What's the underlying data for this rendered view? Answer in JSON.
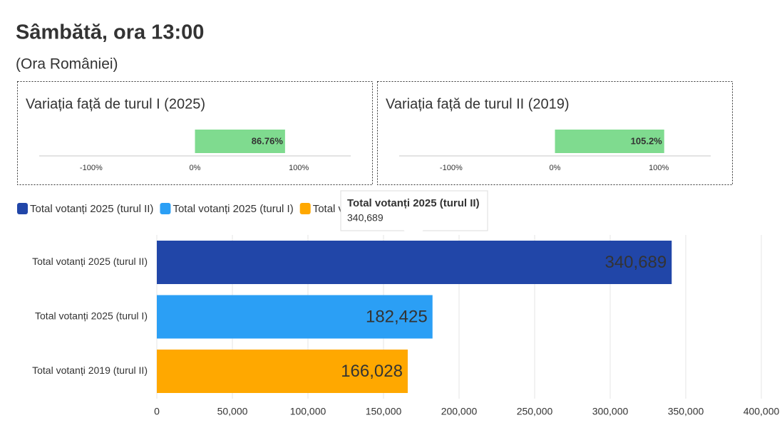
{
  "title": "Sâmbătă, ora 13:00",
  "subtitle": "(Ora României)",
  "chart_data": [
    {
      "type": "bar",
      "title": "Variația față de turul I (2025)",
      "values": [
        86.76
      ],
      "value_labels": [
        "86.76%"
      ],
      "color": "#7fdb8f",
      "xlim": [
        -150,
        150
      ],
      "xticks": [
        {
          "value": -100,
          "label": "-100%"
        },
        {
          "value": 0,
          "label": "0%"
        },
        {
          "value": 100,
          "label": "100%"
        }
      ]
    },
    {
      "type": "bar",
      "title": "Variația față de turul II (2019)",
      "values": [
        105.2
      ],
      "value_labels": [
        "105.2%"
      ],
      "color": "#7fdb8f",
      "xlim": [
        -150,
        150
      ],
      "xticks": [
        {
          "value": -100,
          "label": "-100%"
        },
        {
          "value": 0,
          "label": "0%"
        },
        {
          "value": 100,
          "label": "100%"
        }
      ]
    },
    {
      "type": "bar",
      "categories": [
        "Total votanți 2025 (turul II)",
        "Total votanți 2025 (turul I)",
        "Total votanți 2019 (turul II)"
      ],
      "values": [
        340689,
        182425,
        166028
      ],
      "value_labels": [
        "340,689",
        "182,425",
        "166,028"
      ],
      "colors": [
        "#2146a8",
        "#2b9ff5",
        "#ffa800"
      ],
      "xlim": [
        0,
        400000
      ],
      "xticks": [
        0,
        {
          "value": 50000,
          "label": "50,000"
        },
        {
          "value": 100000,
          "label": "100,000"
        },
        {
          "value": 150000,
          "label": "150,000"
        },
        {
          "value": 200000,
          "label": "200,000"
        },
        {
          "value": 250000,
          "label": "250,000"
        },
        {
          "value": 300000,
          "label": "300,000"
        },
        {
          "value": 350000,
          "label": "350,000"
        },
        {
          "value": 400000,
          "label": "400,000"
        }
      ],
      "grid": true
    }
  ]
}
